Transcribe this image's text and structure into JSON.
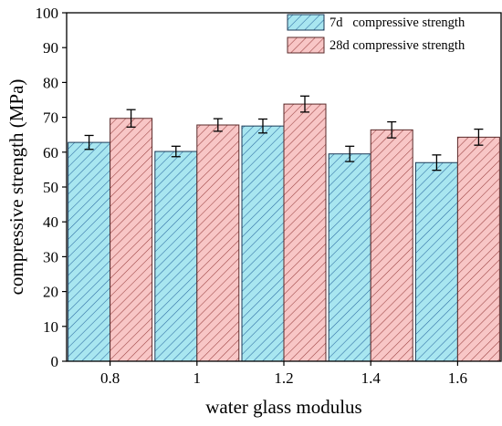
{
  "chart_data": {
    "type": "bar",
    "xlabel": "water glass modulus",
    "ylabel": "compressive strength (MPa)",
    "categories": [
      "0.8",
      "1",
      "1.2",
      "1.4",
      "1.6"
    ],
    "ylim": [
      0,
      100
    ],
    "yticks": [
      "0",
      "10",
      "20",
      "30",
      "40",
      "50",
      "60",
      "70",
      "80",
      "90",
      "100"
    ],
    "grid": false,
    "legend_position": "top-right",
    "series": [
      {
        "name": "7d   compressive strength",
        "values": [
          62.8,
          60.2,
          67.5,
          59.5,
          57.0
        ],
        "errors": [
          2.0,
          1.5,
          2.0,
          2.2,
          2.2
        ],
        "color": "#a8e6f0",
        "edge": "#1c3a57",
        "hatch": "#2a6aa0"
      },
      {
        "name": "28d compressive strength",
        "values": [
          69.7,
          67.8,
          73.8,
          66.4,
          64.3
        ],
        "errors": [
          2.5,
          1.8,
          2.3,
          2.3,
          2.3
        ],
        "color": "#f8c6c6",
        "edge": "#5a2a2a",
        "hatch": "#9a4040"
      }
    ]
  }
}
